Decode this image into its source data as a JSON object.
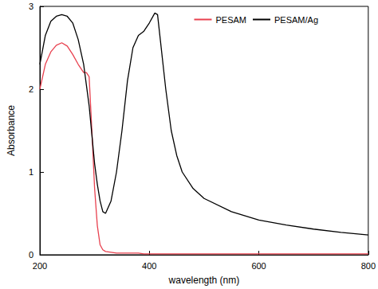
{
  "chart_data": {
    "type": "line",
    "x_label": "wavelength (nm)",
    "y_label": "Absorbance",
    "x": [
      200,
      210,
      220,
      230,
      240,
      250,
      260,
      270,
      280,
      285,
      290,
      295,
      300,
      305,
      310,
      315,
      320,
      330,
      340,
      350,
      360,
      370,
      380,
      390,
      400,
      410,
      415,
      420,
      430,
      440,
      450,
      460,
      480,
      500,
      550,
      600,
      650,
      700,
      750,
      800
    ],
    "series": [
      {
        "name": "PESAM",
        "color": "#e8414f",
        "values": [
          2.0,
          2.3,
          2.45,
          2.53,
          2.56,
          2.52,
          2.42,
          2.3,
          2.2,
          2.2,
          2.15,
          1.5,
          0.8,
          0.35,
          0.12,
          0.06,
          0.04,
          0.03,
          0.02,
          0.02,
          0.02,
          0.02,
          0.02,
          0.01,
          0.01,
          0.01,
          0.01,
          0.01,
          0.01,
          0.01,
          0.01,
          0.01,
          0.01,
          0.01,
          0.01,
          0.01,
          0.01,
          0.01,
          0.01,
          0.01
        ]
      },
      {
        "name": "PESAM/Ag",
        "color": "#000000",
        "values": [
          2.3,
          2.65,
          2.82,
          2.88,
          2.9,
          2.88,
          2.8,
          2.6,
          2.3,
          2.05,
          1.8,
          1.45,
          1.1,
          0.85,
          0.65,
          0.52,
          0.5,
          0.65,
          1.0,
          1.5,
          2.1,
          2.5,
          2.65,
          2.7,
          2.8,
          2.92,
          2.9,
          2.6,
          2.0,
          1.5,
          1.2,
          1.0,
          0.8,
          0.68,
          0.52,
          0.42,
          0.36,
          0.31,
          0.27,
          0.24
        ]
      }
    ],
    "xlim": [
      200,
      800
    ],
    "xticks": [
      200,
      400,
      600,
      800
    ],
    "ylim": [
      0,
      3
    ],
    "yticks": [
      0,
      1,
      2,
      3
    ],
    "grid": false,
    "legend": "top-right"
  }
}
